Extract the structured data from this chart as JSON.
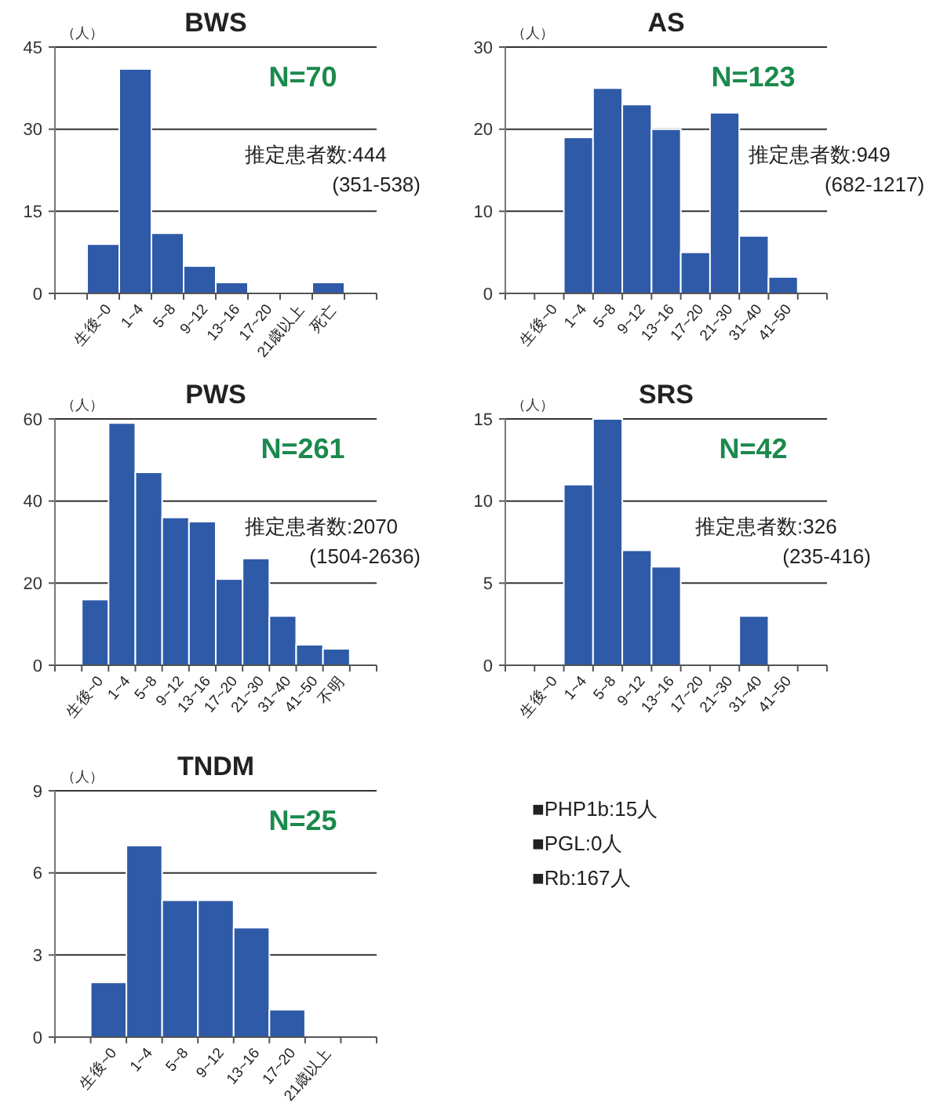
{
  "chart_data": [
    {
      "type": "bar",
      "title": "BWS",
      "ylabel": "（人）",
      "categories": [
        "生後~0",
        "1~4",
        "5~8",
        "9~12",
        "13~16",
        "17~20",
        "21歳以上",
        "死亡"
      ],
      "values": [
        9,
        41,
        11,
        5,
        2,
        0,
        0,
        2
      ],
      "color": "#2e5aa8",
      "ylim": [
        0,
        45
      ],
      "yticks": [
        0,
        15,
        30,
        45
      ],
      "grid": "y",
      "annotations": [
        "N=70",
        "推定患者数:444",
        "(351-538)"
      ]
    },
    {
      "type": "bar",
      "title": "AS",
      "ylabel": "（人）",
      "categories": [
        "生後~0",
        "1~4",
        "5~8",
        "9~12",
        "13~16",
        "17~20",
        "21~30",
        "31~40",
        "41~50"
      ],
      "values": [
        0,
        19,
        25,
        23,
        20,
        5,
        22,
        7,
        2
      ],
      "color": "#2e5aa8",
      "ylim": [
        0,
        30
      ],
      "yticks": [
        0,
        10,
        20,
        30
      ],
      "grid": "y",
      "annotations": [
        "N=123",
        "推定患者数:949",
        "(682-1217)"
      ]
    },
    {
      "type": "bar",
      "title": "PWS",
      "ylabel": "（人）",
      "categories": [
        "生後~0",
        "1~4",
        "5~8",
        "9~12",
        "13~16",
        "17~20",
        "21~30",
        "31~40",
        "41~50",
        "不明"
      ],
      "values": [
        16,
        59,
        47,
        36,
        35,
        21,
        26,
        12,
        5,
        4
      ],
      "color": "#2e5aa8",
      "ylim": [
        0,
        60
      ],
      "yticks": [
        0,
        20,
        40,
        60
      ],
      "grid": "y",
      "annotations": [
        "N=261",
        "推定患者数:2070",
        "(1504-2636)"
      ]
    },
    {
      "type": "bar",
      "title": "SRS",
      "ylabel": "（人）",
      "categories": [
        "生後~0",
        "1~4",
        "5~8",
        "9~12",
        "13~16",
        "17~20",
        "21~30",
        "31~40",
        "41~50"
      ],
      "values": [
        0,
        11,
        15,
        7,
        6,
        0,
        0,
        3,
        0
      ],
      "color": "#2e5aa8",
      "ylim": [
        0,
        15
      ],
      "yticks": [
        0,
        5,
        10,
        15
      ],
      "grid": "y",
      "annotations": [
        "N=42",
        "推定患者数:326",
        "(235-416)"
      ]
    },
    {
      "type": "bar",
      "title": "TNDM",
      "ylabel": "（人）",
      "categories": [
        "生後~0",
        "1~4",
        "5~8",
        "9~12",
        "13~16",
        "17~20",
        "21歳以上"
      ],
      "values": [
        2,
        7,
        5,
        5,
        4,
        1,
        0
      ],
      "color": "#2e5aa8",
      "ylim": [
        0,
        9
      ],
      "yticks": [
        0,
        3,
        6,
        9
      ],
      "grid": "y",
      "annotations": [
        "N=25"
      ]
    },
    {
      "type": "other",
      "annotations": [
        "■PHP1b:15人",
        "■PGL:0人",
        "■Rb:167人"
      ]
    }
  ]
}
